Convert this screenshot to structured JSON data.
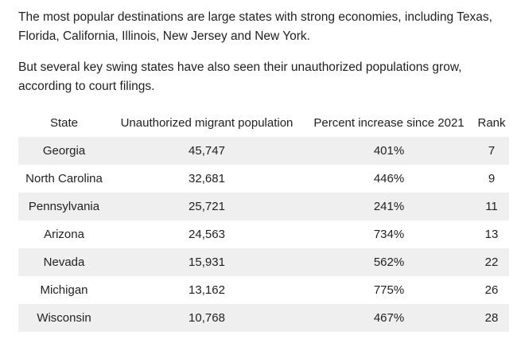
{
  "article": {
    "paragraph1": "The most popular destinations are large states with strong economies, including Texas, Florida, California, Illinois, New Jersey and New York.",
    "paragraph2": "But several key swing states have also seen their unauthorized populations grow, according to court filings."
  },
  "table": {
    "headers": {
      "state": "State",
      "population": "Unauthorized migrant population",
      "percent": "Percent increase since 2021",
      "rank": "Rank"
    },
    "rows": [
      {
        "state": "Georgia",
        "population": "45,747",
        "percent": "401%",
        "rank": "7"
      },
      {
        "state": "North Carolina",
        "population": "32,681",
        "percent": "446%",
        "rank": "9"
      },
      {
        "state": "Pennsylvania",
        "population": "25,721",
        "percent": "241%",
        "rank": "11"
      },
      {
        "state": "Arizona",
        "population": "24,563",
        "percent": "734%",
        "rank": "13"
      },
      {
        "state": "Nevada",
        "population": "15,931",
        "percent": "562%",
        "rank": "22"
      },
      {
        "state": "Michigan",
        "population": "13,162",
        "percent": "775%",
        "rank": "26"
      },
      {
        "state": "Wisconsin",
        "population": "10,768",
        "percent": "467%",
        "rank": "28"
      }
    ]
  }
}
